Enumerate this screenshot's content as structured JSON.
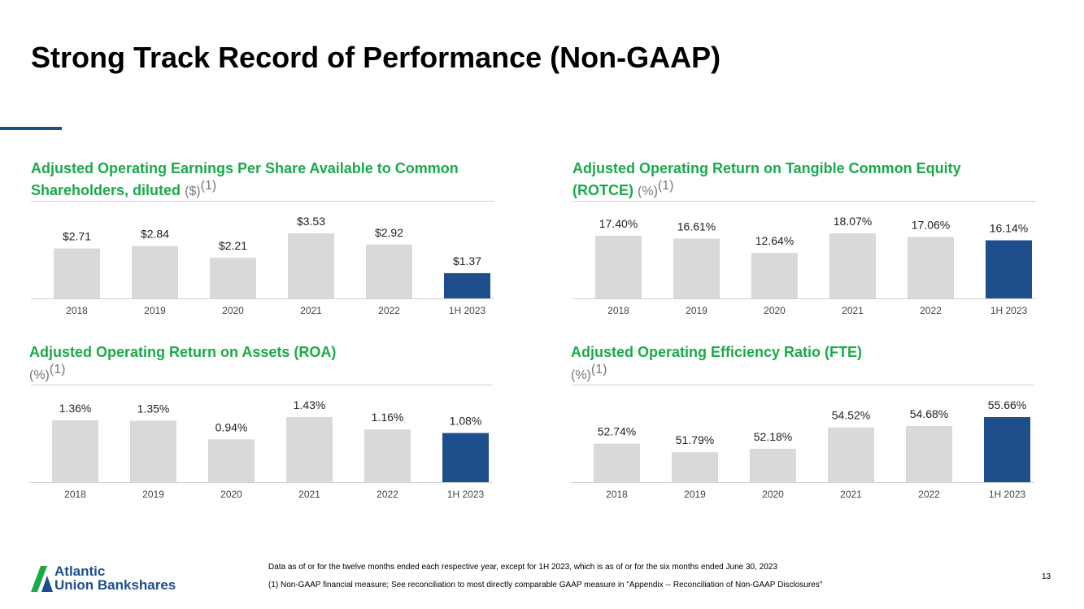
{
  "title": "Strong Track Record of Performance (Non-GAAP)",
  "colors": {
    "green": "#1aaa4a",
    "navy": "#1f4e8c",
    "gray_bar": "#d9d9d9"
  },
  "panels": [
    {
      "title_line1": "Adjusted Operating Earnings Per Share Available to Common",
      "title_line2": "Shareholders, diluted",
      "unit": "($)",
      "note": "(1)"
    },
    {
      "title_line1": "Adjusted Operating Return on Tangible Common Equity",
      "title_line2": "(ROTCE)",
      "unit": "(%)",
      "note": "(1)"
    },
    {
      "title_line1": "Adjusted Operating Return on Assets (ROA)",
      "title_line2": "",
      "unit": "(%)",
      "note": "(1)"
    },
    {
      "title_line1": "Adjusted Operating Efficiency Ratio (FTE)",
      "title_line2": "",
      "unit": "(%)",
      "note": "(1)"
    }
  ],
  "chart_data": [
    {
      "type": "bar",
      "categories": [
        "2018",
        "2019",
        "2020",
        "2021",
        "2022",
        "1H 2023"
      ],
      "values": [
        2.71,
        2.84,
        2.21,
        3.53,
        2.92,
        1.37
      ],
      "labels": [
        "$2.71",
        "$2.84",
        "$2.21",
        "$3.53",
        "$2.92",
        "$1.37"
      ],
      "ylim": [
        0,
        3.53
      ]
    },
    {
      "type": "bar",
      "categories": [
        "2018",
        "2019",
        "2020",
        "2021",
        "2022",
        "1H 2023"
      ],
      "values": [
        17.4,
        16.61,
        12.64,
        18.07,
        17.06,
        16.14
      ],
      "labels": [
        "17.40%",
        "16.61%",
        "12.64%",
        "18.07%",
        "17.06%",
        "16.14%"
      ],
      "ylim": [
        0,
        18.07
      ]
    },
    {
      "type": "bar",
      "categories": [
        "2018",
        "2019",
        "2020",
        "2021",
        "2022",
        "1H 2023"
      ],
      "values": [
        1.36,
        1.35,
        0.94,
        1.43,
        1.16,
        1.08
      ],
      "labels": [
        "1.36%",
        "1.35%",
        "0.94%",
        "1.43%",
        "1.16%",
        "1.08%"
      ],
      "ylim": [
        0,
        1.43
      ]
    },
    {
      "type": "bar",
      "categories": [
        "2018",
        "2019",
        "2020",
        "2021",
        "2022",
        "1H 2023"
      ],
      "values": [
        52.74,
        51.79,
        52.18,
        54.52,
        54.68,
        55.66
      ],
      "labels": [
        "52.74%",
        "51.79%",
        "52.18%",
        "54.52%",
        "54.68%",
        "55.66%"
      ],
      "ylim": [
        48.5,
        55.66
      ]
    }
  ],
  "footer": {
    "logo_line1": "Atlantic",
    "logo_line2": "Union Bankshares",
    "note1": "Data as of or for the twelve months ended each respective year, except for 1H 2023, which is as of or for the six months ended June 30, 2023",
    "note2": "(1) Non-GAAP financial measure; See reconciliation to most directly comparable GAAP measure in \"Appendix -- Reconciliation of Non-GAAP Disclosures\"",
    "page_number": "13"
  }
}
